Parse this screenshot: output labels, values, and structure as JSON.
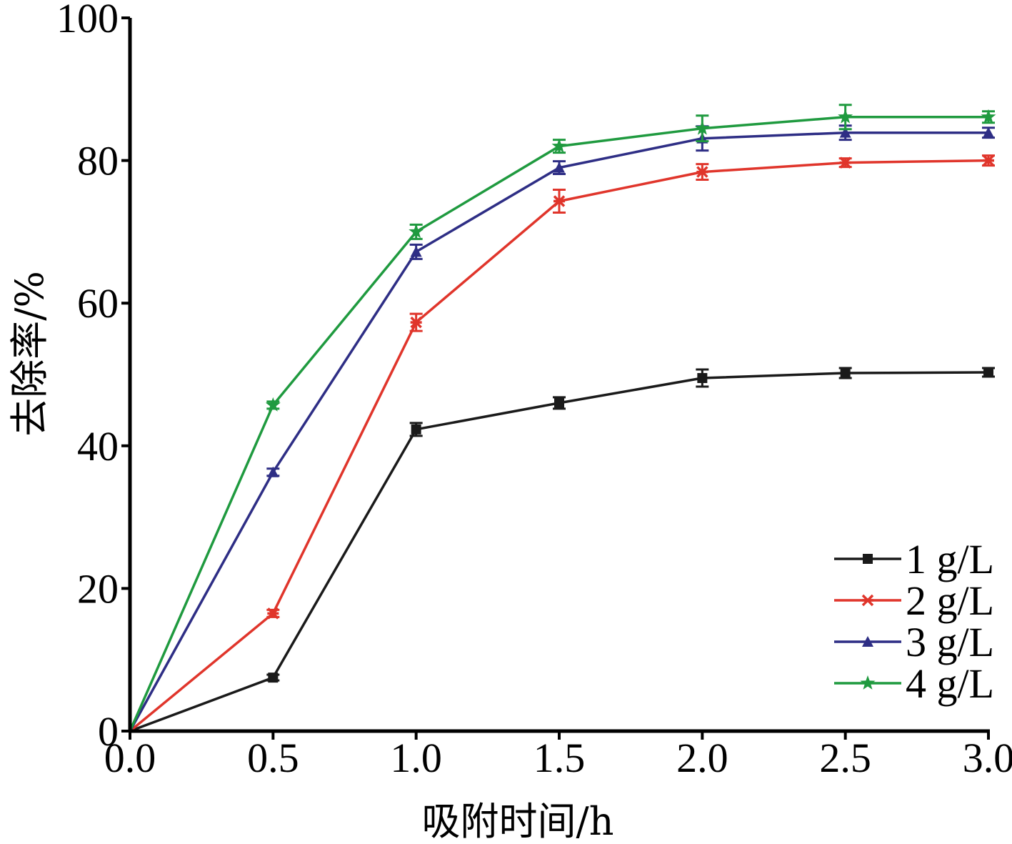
{
  "chart_data": {
    "type": "line",
    "xlabel": "吸附时间/h",
    "ylabel": "去除率/%",
    "xlim": [
      0,
      3.0
    ],
    "ylim": [
      0,
      100
    ],
    "xticks": [
      "0.0",
      "0.5",
      "1.0",
      "1.5",
      "2.0",
      "2.5",
      "3.0"
    ],
    "yticks": [
      "0",
      "20",
      "40",
      "60",
      "80",
      "100"
    ],
    "grid": false,
    "legend_position": "bottom-right",
    "x": [
      0,
      0.5,
      1.0,
      1.5,
      2.0,
      2.5,
      3.0
    ],
    "series": [
      {
        "name": "1 g/L",
        "color": "#1a1a1a",
        "marker": "square",
        "values": [
          0,
          7.5,
          42.3,
          46.0,
          49.5,
          50.2,
          50.3
        ],
        "errors": [
          0,
          0.4,
          0.9,
          0.8,
          1.2,
          0.7,
          0.6
        ]
      },
      {
        "name": "2 g/L",
        "color": "#e0352b",
        "marker": "asterisk",
        "values": [
          0,
          16.5,
          57.3,
          74.3,
          78.4,
          79.7,
          80.0
        ],
        "errors": [
          0,
          0.5,
          1.2,
          1.6,
          1.1,
          0.6,
          0.7
        ]
      },
      {
        "name": "3 g/L",
        "color": "#2e2e85",
        "marker": "triangle",
        "values": [
          0,
          36.3,
          67.2,
          79.0,
          83.1,
          83.9,
          83.9
        ],
        "errors": [
          0,
          0.5,
          1.0,
          0.9,
          1.7,
          1.0,
          0.7
        ]
      },
      {
        "name": "4 g/L",
        "color": "#1f9a3f",
        "marker": "star",
        "values": [
          0,
          45.7,
          70.0,
          82.0,
          84.5,
          86.1,
          86.1
        ],
        "errors": [
          0,
          0.5,
          1.0,
          0.9,
          1.8,
          1.7,
          0.8
        ]
      }
    ]
  }
}
